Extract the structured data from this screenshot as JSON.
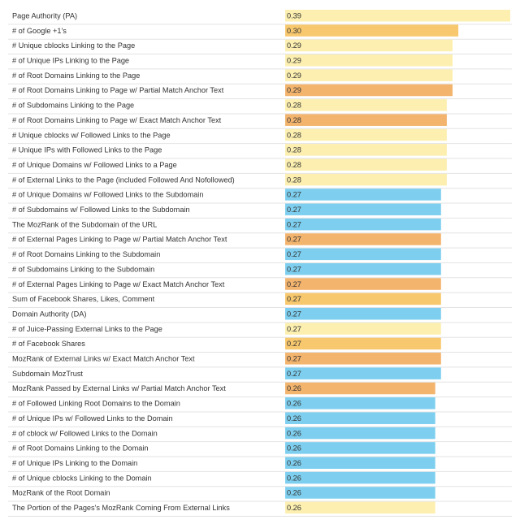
{
  "chart_data": {
    "type": "bar",
    "orientation": "horizontal",
    "categories": [
      "Page Authority (PA)",
      "# of Google +1's",
      "# Unique cblocks Linking to the Page",
      "# of Unique IPs Linking to the Page",
      "# of Root Domains Linking to the Page",
      "# of Root Domains Linking to Page w/ Partial Match Anchor Text",
      "# of Subdomains Linking to the Page",
      "# of Root Domains Linking to Page w/ Exact Match Anchor Text",
      "# Unique cblocks w/ Followed Links to the Page",
      "# Unique IPs with Followed Links to the Page",
      "# of Unique Domains w/ Followed Links to a Page",
      "# of External Links to the Page (included Followed And Nofollowed)",
      "# of Unique Domains w/ Followed Links to the Subdomain",
      "# of Subdomains w/ Followed Links to the Subdomain",
      "The MozRank of the Subdomain of the URL",
      "# of External Pages Linking to Page w/ Partial Match Anchor Text",
      "# of Root Domains Linking to the Subdomain",
      "# of Subdomains Linking to the Subdomain",
      "# of External Pages Linking to Page w/ Exact Match Anchor Text",
      "Sum of Facebook Shares, Likes, Comment",
      "Domain Authority (DA)",
      "# of Juice-Passing External Links to the Page",
      "# of Facebook Shares",
      "MozRank of External Links w/ Exact Match Anchor Text",
      "Subdomain MozTrust",
      "MozRank Passed by External Links w/ Partial Match Anchor Text",
      "# of Followed Linking Root Domains to the Domain",
      "# of Unique IPs w/ Followed Links to the Domain",
      "# of cblock w/ Followed Links to the Domain",
      "# of Root Domains Linking to the Domain",
      "# of Unique IPs Linking to the Domain",
      "# of Unique cblocks Linking to the Domain",
      "MozRank of the Root Domain",
      "The Portion of the Pages's MozRank Coming From External Links"
    ],
    "values": [
      0.39,
      0.3,
      0.29,
      0.29,
      0.29,
      0.29,
      0.28,
      0.28,
      0.28,
      0.28,
      0.28,
      0.28,
      0.27,
      0.27,
      0.27,
      0.27,
      0.27,
      0.27,
      0.27,
      0.27,
      0.27,
      0.27,
      0.27,
      0.27,
      0.27,
      0.26,
      0.26,
      0.26,
      0.26,
      0.26,
      0.26,
      0.26,
      0.26,
      0.26
    ],
    "value_labels": [
      "0.39",
      "0.30",
      "0.29",
      "0.29",
      "0.29",
      "0.29",
      "0.28",
      "0.28",
      "0.28",
      "0.28",
      "0.28",
      "0.28",
      "0.27",
      "0.27",
      "0.27",
      "0.27",
      "0.27",
      "0.27",
      "0.27",
      "0.27",
      "0.27",
      "0.27",
      "0.27",
      "0.27",
      "0.27",
      "0.26",
      "0.26",
      "0.26",
      "0.26",
      "0.26",
      "0.26",
      "0.26",
      "0.26",
      "0.26"
    ],
    "bar_colors": [
      "#fcefb0",
      "#f8c86e",
      "#fcefb0",
      "#fcefb0",
      "#fcefb0",
      "#f3b46e",
      "#fcefb0",
      "#f3b46e",
      "#fcefb0",
      "#fcefb0",
      "#fcefb0",
      "#fcefb0",
      "#7ecfef",
      "#7ecfef",
      "#7ecfef",
      "#f3b46e",
      "#7ecfef",
      "#7ecfef",
      "#f3b46e",
      "#f8c86e",
      "#7ecfef",
      "#fcefb0",
      "#f8c86e",
      "#f3b46e",
      "#7ecfef",
      "#f3b46e",
      "#7ecfef",
      "#7ecfef",
      "#7ecfef",
      "#7ecfef",
      "#7ecfef",
      "#7ecfef",
      "#7ecfef",
      "#fcefb0"
    ],
    "xlim": [
      0,
      0.39
    ],
    "grid": false,
    "legend": "none"
  }
}
